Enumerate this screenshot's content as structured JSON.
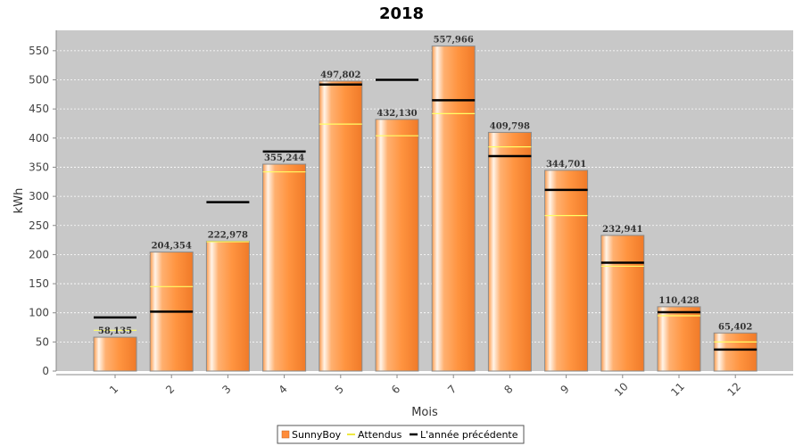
{
  "chart_data": {
    "type": "bar",
    "title": "2018",
    "xlabel": "Mois",
    "ylabel": "kWh",
    "ylim": [
      0,
      585
    ],
    "yticks": [
      0,
      50,
      100,
      150,
      200,
      250,
      300,
      350,
      400,
      450,
      500,
      550
    ],
    "grid": true,
    "legend_position": "bottom",
    "categories": [
      "1",
      "2",
      "3",
      "4",
      "5",
      "6",
      "7",
      "8",
      "9",
      "10",
      "11",
      "12"
    ],
    "series": [
      {
        "name": "SunnyBoy",
        "kind": "bar",
        "color": "#ff8c3a",
        "values": [
          58.135,
          204.354,
          222.978,
          355.244,
          497.802,
          432.13,
          557.966,
          409.798,
          344.701,
          232.941,
          110.428,
          65.402
        ],
        "labels": [
          "58,135",
          "204,354",
          "222,978",
          "355,244",
          "497,802",
          "432,130",
          "557,966",
          "409,798",
          "344,701",
          "232,941",
          "110,428",
          "65,402"
        ]
      },
      {
        "name": "Attendus",
        "kind": "marker",
        "color": "#ffff66",
        "values": [
          70,
          145,
          222,
          342,
          424,
          404,
          442,
          385,
          267,
          180,
          95,
          50
        ]
      },
      {
        "name": "L'année précédente",
        "kind": "marker",
        "color": "#000000",
        "values": [
          92,
          102,
          290,
          377,
          492,
          500,
          465,
          369,
          311,
          186,
          101,
          37
        ]
      }
    ]
  }
}
